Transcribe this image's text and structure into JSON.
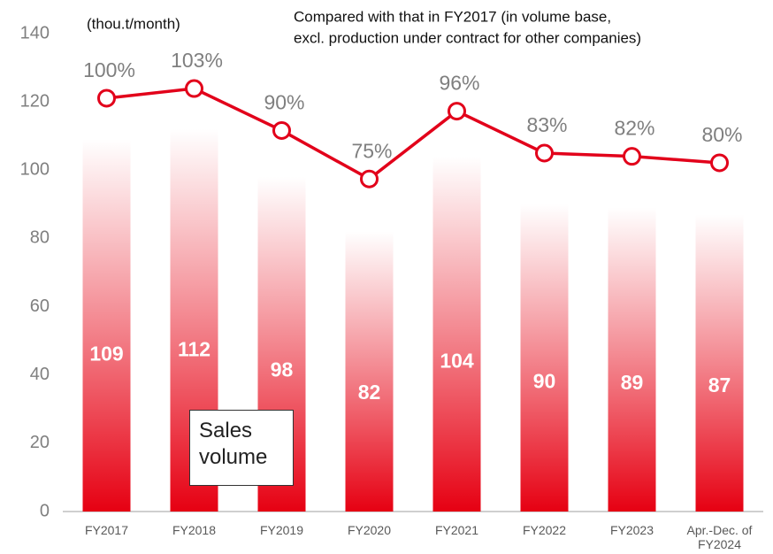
{
  "chart_data": {
    "type": "bar",
    "unit_label": "(thou.t/month)",
    "annotation": [
      "Compared with that in FY2017 (in volume base,",
      "excl. production under contract for other companies)"
    ],
    "categories": [
      "FY2017",
      "FY2018",
      "FY2019",
      "FY2020",
      "FY2021",
      "FY2022",
      "FY2023",
      "Apr.-Dec. of FY2024"
    ],
    "ylim": [
      0,
      140
    ],
    "yticks": [
      0,
      20,
      40,
      60,
      80,
      100,
      120,
      140
    ],
    "y2lim": [
      -28,
      120
    ],
    "grid": false,
    "series": [
      {
        "name": "Sales volume",
        "type": "bar",
        "color": "#e60012",
        "values": [
          109,
          112,
          98,
          82,
          104,
          90,
          89,
          87
        ]
      },
      {
        "type": "line",
        "axis": "y2",
        "color": "#e2001a",
        "values": [
          100,
          103,
          90,
          75,
          96,
          83,
          82,
          80
        ],
        "value_labels": [
          "100%",
          "103%",
          "90%",
          "75%",
          "96%",
          "83%",
          "82%",
          "80%"
        ]
      }
    ]
  }
}
